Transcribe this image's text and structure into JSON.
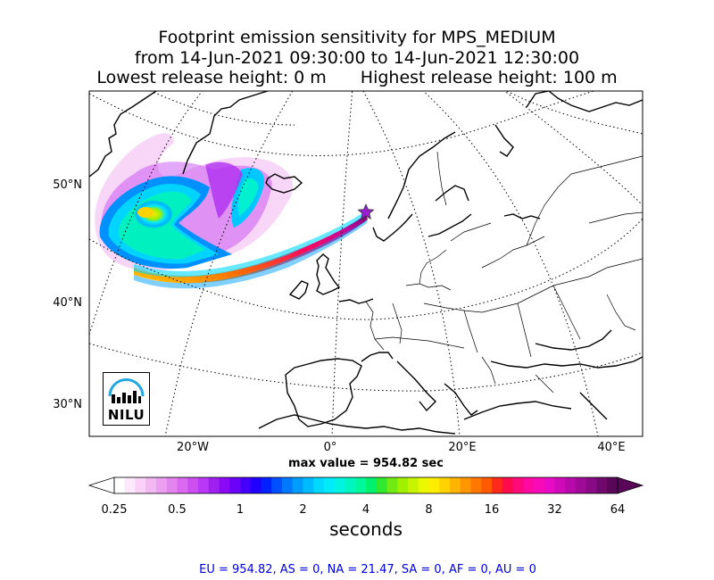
{
  "title": {
    "line1": "Footprint emission sensitivity for MPS_MEDIUM",
    "line2": "from 14-Jun-2021 09:30:00 to 14-Jun-2021 12:30:00",
    "lowest": "Lowest release height: 0 m",
    "highest": "Highest release height: 100 m"
  },
  "map": {
    "lat_labels": [
      "50°N",
      "40°N",
      "30°N"
    ],
    "lon_labels": [
      "20°W",
      "0°",
      "20°E",
      "40°E"
    ],
    "release_marker": "star-icon",
    "marker_color": "#9b1fd0",
    "logo_text": "NILU",
    "logo_color": "#22a7e0"
  },
  "max_value": "max value = 954.82 sec",
  "colorbar": {
    "ticks": [
      "0.25",
      "0.5",
      "1",
      "2",
      "4",
      "8",
      "16",
      "32",
      "64"
    ],
    "unit": "seconds",
    "colors": [
      "#ffffff",
      "#fde8fd",
      "#f8d0f8",
      "#f2b8f2",
      "#ec9ef0",
      "#e484ee",
      "#d96aef",
      "#cc50f0",
      "#b838f5",
      "#a020f0",
      "#8a0af5",
      "#6a00f8",
      "#4400fa",
      "#2200ff",
      "#0020ff",
      "#0050ff",
      "#0078ff",
      "#009cff",
      "#00bcff",
      "#00d8ff",
      "#00ecf8",
      "#00f4e0",
      "#00f8c0",
      "#00f89a",
      "#00f070",
      "#30e830",
      "#70ea10",
      "#a0f000",
      "#c8f400",
      "#eaf800",
      "#ffee00",
      "#ffd200",
      "#ffb400",
      "#ff9600",
      "#ff7800",
      "#ff5a00",
      "#ff2a1a",
      "#ff0a4a",
      "#ff0a78",
      "#ff0aa0",
      "#f80ab8",
      "#e80ac4",
      "#d00ab8",
      "#b80aa8",
      "#a00a96",
      "#880a84",
      "#70086e",
      "#5a0658"
    ]
  },
  "stats": "EU = 954.82,  AS = 0,  NA = 21.47,  SA = 0,  AF = 0,  AU = 0"
}
